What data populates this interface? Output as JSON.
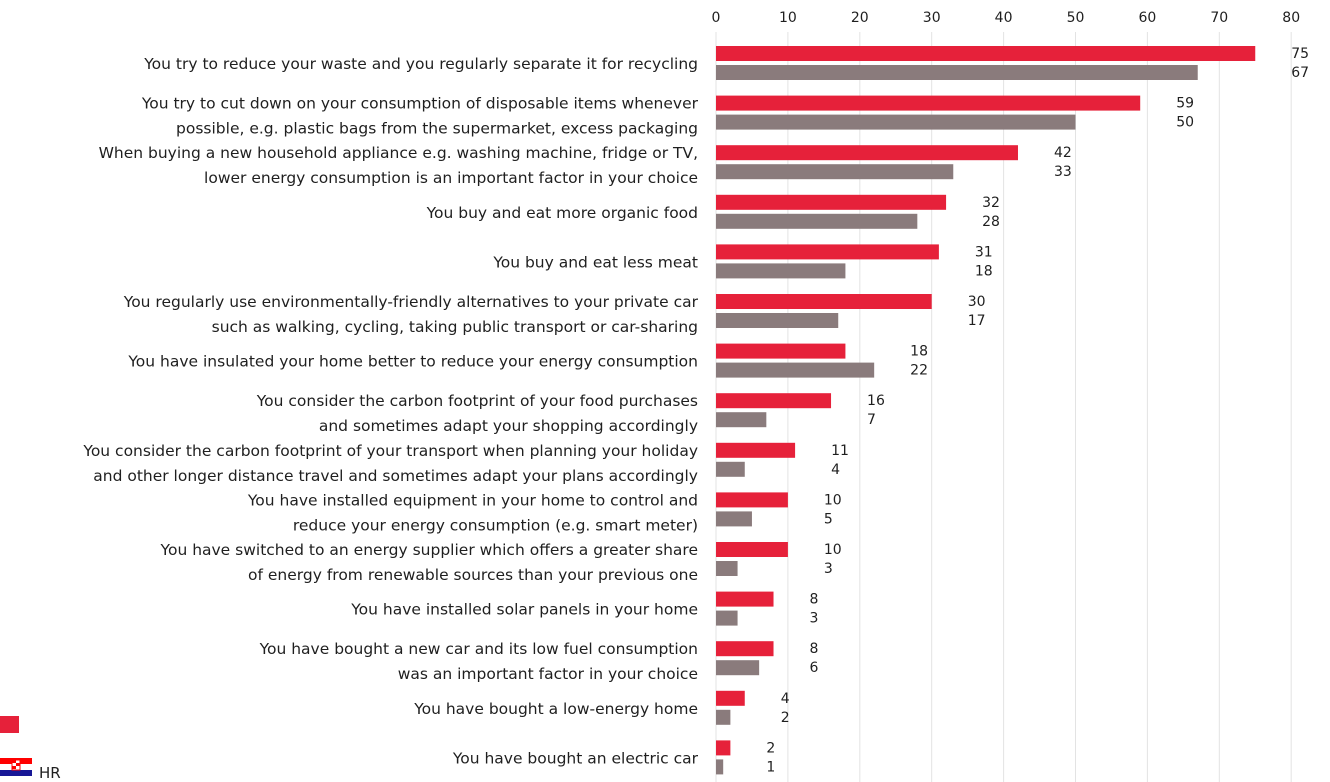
{
  "chart_data": {
    "type": "bar",
    "orientation": "horizontal",
    "xlim": [
      0,
      80
    ],
    "x_ticks": [
      0,
      10,
      20,
      30,
      40,
      50,
      60,
      70,
      80
    ],
    "grid": true,
    "categories": [
      [
        "You try to reduce your waste and you regularly separate it for recycling"
      ],
      [
        "You try to cut down on your consumption of disposable items whenever",
        "possible, e.g. plastic bags from the supermarket, excess packaging"
      ],
      [
        "When buying a new household appliance e.g. washing machine, fridge or TV,",
        "lower energy consumption is an important factor in your choice"
      ],
      [
        "You buy and eat more organic food"
      ],
      [
        "You buy and eat less meat"
      ],
      [
        "You regularly use environmentally-friendly alternatives to your private car",
        "such as walking, cycling, taking public transport or car-sharing"
      ],
      [
        "You have insulated your home better to reduce your energy consumption"
      ],
      [
        "You consider the carbon footprint of your food purchases",
        "and sometimes adapt your shopping accordingly"
      ],
      [
        "You consider the carbon footprint of your transport when planning your holiday",
        "and other longer distance travel and sometimes adapt your plans accordingly"
      ],
      [
        "You have installed equipment in your home to control and",
        "reduce your energy consumption (e.g. smart meter)"
      ],
      [
        "You have switched to an energy supplier which offers a greater share",
        "of energy from renewable sources than your previous one"
      ],
      [
        "You have installed solar panels in your home"
      ],
      [
        "You have bought a new car and its low fuel consumption",
        "was an important factor in your choice"
      ],
      [
        "You have bought a low-energy home"
      ],
      [
        "You have bought an electric car"
      ]
    ],
    "series": [
      {
        "color": "#e6213a",
        "values": [
          75,
          59,
          42,
          32,
          31,
          30,
          18,
          16,
          11,
          10,
          10,
          8,
          8,
          4,
          2
        ]
      },
      {
        "name": "HR",
        "color": "#8a7b7c",
        "values": [
          67,
          50,
          33,
          28,
          18,
          17,
          22,
          7,
          4,
          5,
          3,
          3,
          6,
          2,
          1
        ]
      }
    ],
    "legend_position": "bottom-left",
    "legend_icons": [
      "red-swatch-icon",
      "croatia-flag-icon"
    ]
  }
}
